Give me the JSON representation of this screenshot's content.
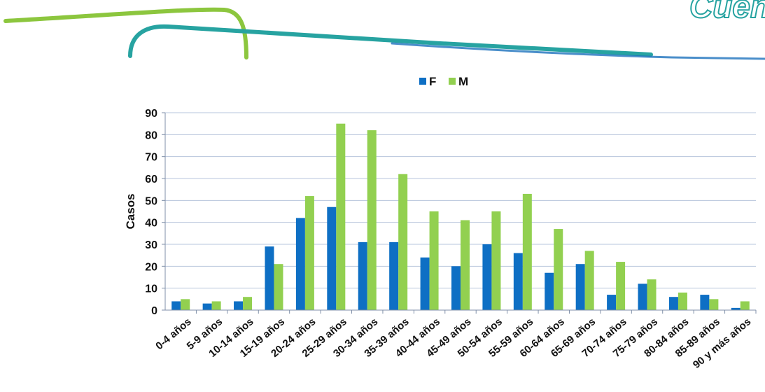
{
  "brand": {
    "logo_text": "Cuenta",
    "colors": {
      "green": "#8cc63e",
      "teal": "#27a3a1",
      "blue": "#1d72bd"
    }
  },
  "chart_data": {
    "type": "bar",
    "title": "",
    "xlabel": "",
    "ylabel": "Casos",
    "ylim": [
      0,
      90
    ],
    "yticks": [
      0,
      10,
      20,
      30,
      40,
      50,
      60,
      70,
      80,
      90
    ],
    "grid": true,
    "legend_position": "top-center",
    "categories": [
      "0-4 años",
      "5-9 años",
      "10-14 años",
      "15-19 años",
      "20-24 años",
      "25-29 años",
      "30-34 años",
      "35-39 años",
      "40-44 años",
      "45-49 años",
      "50-54 años",
      "55-59 años",
      "60-64 años",
      "65-69 años",
      "70-74 años",
      "75-79 años",
      "80-84 años",
      "85-89 años",
      "90 y más años"
    ],
    "series": [
      {
        "name": "F",
        "color": "#0e6fc4",
        "values": [
          4,
          3,
          4,
          29,
          42,
          47,
          31,
          31,
          24,
          20,
          30,
          26,
          17,
          21,
          7,
          12,
          6,
          7,
          1
        ]
      },
      {
        "name": "M",
        "color": "#92d050",
        "values": [
          5,
          4,
          6,
          21,
          52,
          85,
          82,
          62,
          45,
          41,
          45,
          53,
          37,
          27,
          22,
          14,
          8,
          5,
          4
        ]
      }
    ]
  }
}
